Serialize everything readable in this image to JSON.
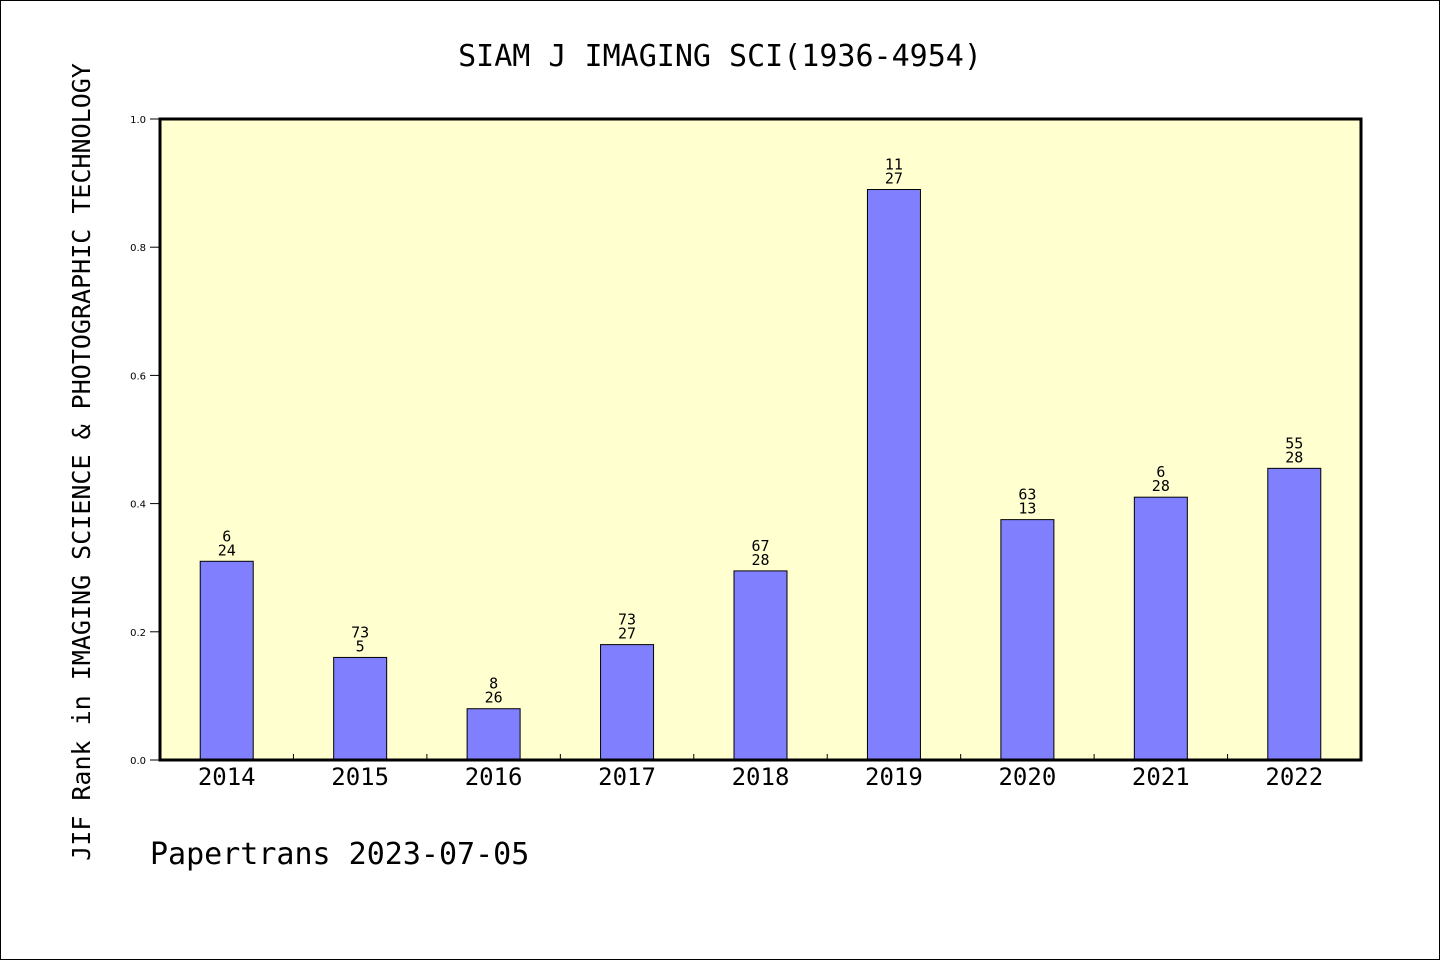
{
  "chart_data": {
    "type": "bar",
    "title": "SIAM J IMAGING SCI(1936-4954)",
    "ylabel": "JIF Rank in IMAGING SCIENCE & PHOTOGRAPHIC TECHNOLOGY",
    "xlabel": "",
    "footer": "Papertrans 2023-07-05",
    "categories": [
      "2014",
      "2015",
      "2016",
      "2017",
      "2018",
      "2019",
      "2020",
      "2021",
      "2022"
    ],
    "values": [
      0.31,
      0.16,
      0.08,
      0.18,
      0.295,
      0.89,
      0.375,
      0.41,
      0.455
    ],
    "bar_labels": [
      [
        "6",
        "24"
      ],
      [
        "73",
        "5"
      ],
      [
        "8",
        "26"
      ],
      [
        "73",
        "27"
      ],
      [
        "67",
        "28"
      ],
      [
        "11",
        "27"
      ],
      [
        "63",
        "13"
      ],
      [
        "6",
        "28"
      ],
      [
        "55",
        "28"
      ]
    ],
    "yticks": [
      "0.0",
      "0.2",
      "0.4",
      "0.6",
      "0.8",
      "1.0"
    ],
    "ylim": [
      0,
      1.0
    ],
    "grid": false,
    "legend": "none",
    "colors": {
      "plot_background": "#ffffd0",
      "bar_fill": "#8080ff",
      "bar_stroke": "#000000",
      "axis": "#000000"
    }
  }
}
